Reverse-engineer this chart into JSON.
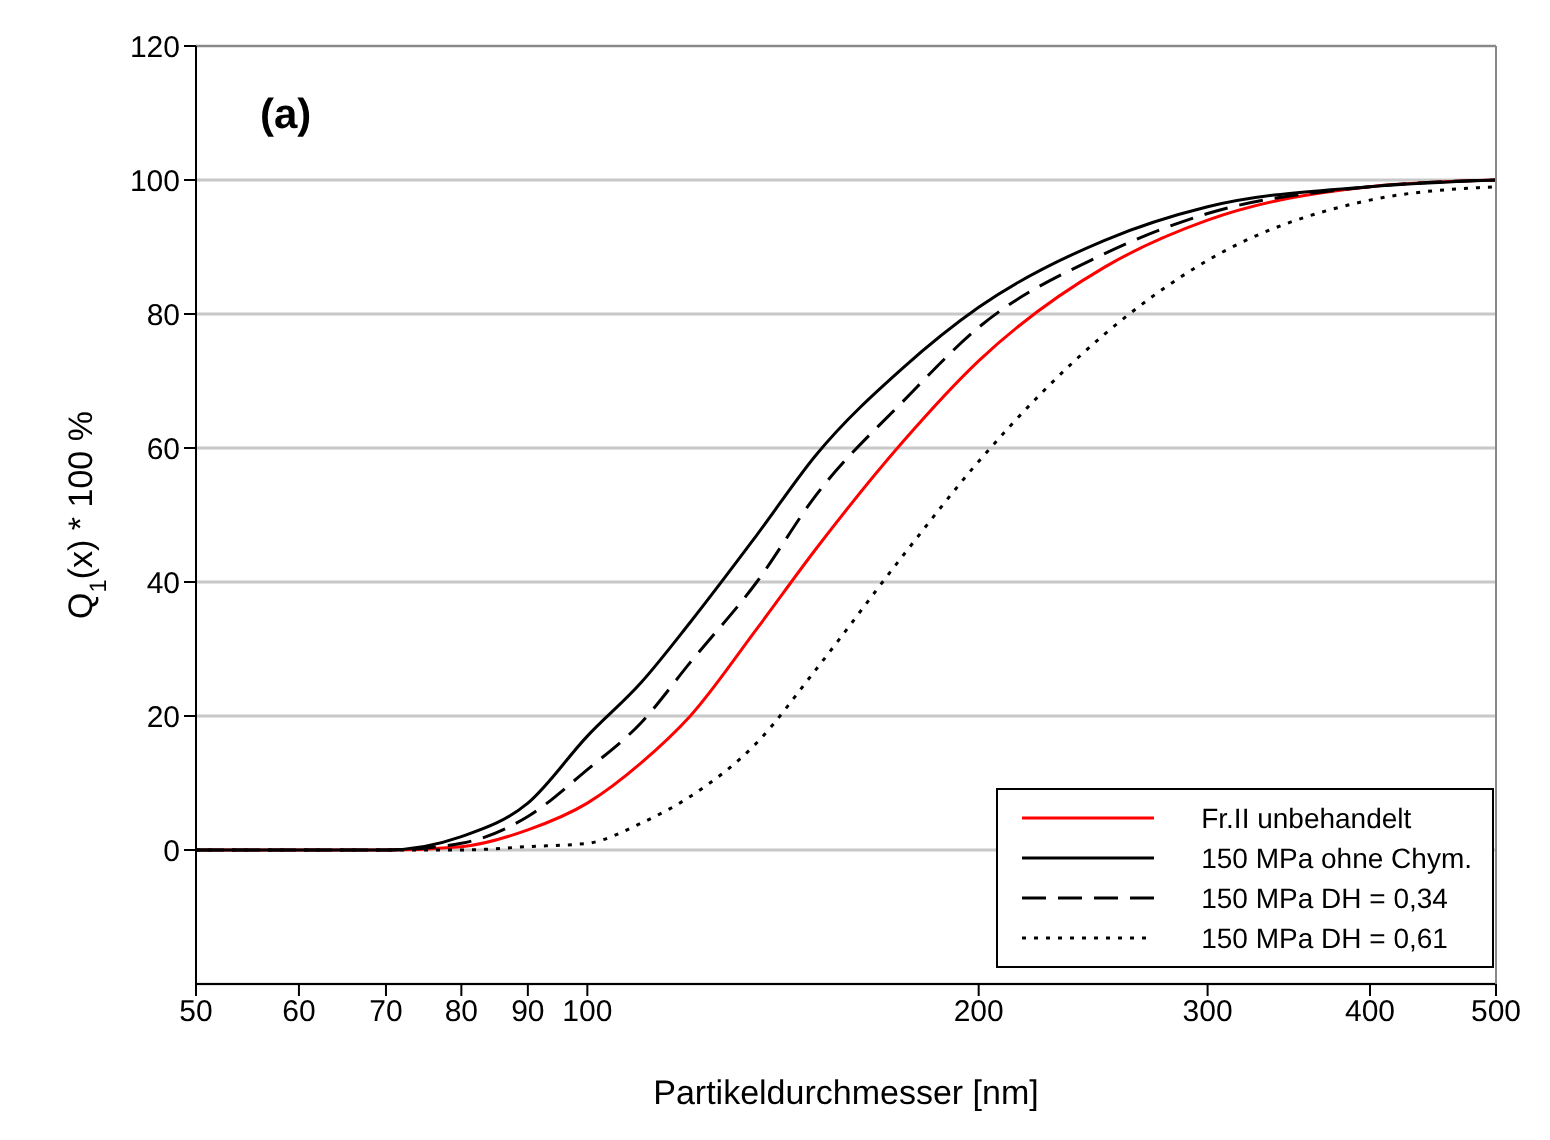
{
  "chart_data": {
    "type": "line",
    "xlabel": "Partikeldurchmesser [nm]",
    "ylabel": "Q$_{1}$(x) * 100 %",
    "annotations": [
      "(a)"
    ],
    "log": "x",
    "grid": "y",
    "legend": "bottom right",
    "marker": "none",
    "x": [
      50,
      60,
      70,
      80,
      90,
      100,
      110,
      120,
      135,
      150,
      175,
      200,
      250,
      300,
      400,
      500
    ],
    "xlim": [
      50,
      500
    ],
    "xticks": [
      50,
      60,
      70,
      80,
      90,
      100,
      200,
      300,
      400,
      500
    ],
    "ylim": [
      -20,
      120
    ],
    "yticks": [
      0,
      20,
      40,
      60,
      80,
      100,
      120
    ],
    "series": [
      {
        "name": "Fr.II unbehandelt",
        "color": "#ff0000",
        "line_style": "solid",
        "values": [
          0,
          0,
          0,
          0.5,
          3,
          7,
          13,
          20,
          33,
          45,
          61,
          73,
          87,
          94,
          99,
          100
        ]
      },
      {
        "name": "150 MPa ohne Chym.",
        "color": "#000000",
        "line_style": "solid",
        "values": [
          0,
          0,
          0,
          2,
          7,
          17,
          25,
          34,
          47,
          59,
          72,
          81,
          91,
          96,
          99,
          100
        ]
      },
      {
        "name": "150 MPa DH = 0,34",
        "color": "#000000",
        "line_style": "dashed",
        "values": [
          0,
          0,
          0,
          1,
          5,
          12,
          19,
          28,
          40,
          53,
          67,
          78,
          89,
          95,
          99,
          100
        ]
      },
      {
        "name": "150 MPa DH = 0,61",
        "color": "#000000",
        "line_style": "dotted",
        "values": [
          0,
          0,
          0,
          0,
          0.5,
          1,
          4,
          8,
          16,
          27,
          44,
          58,
          77,
          88,
          97,
          99
        ]
      }
    ]
  }
}
